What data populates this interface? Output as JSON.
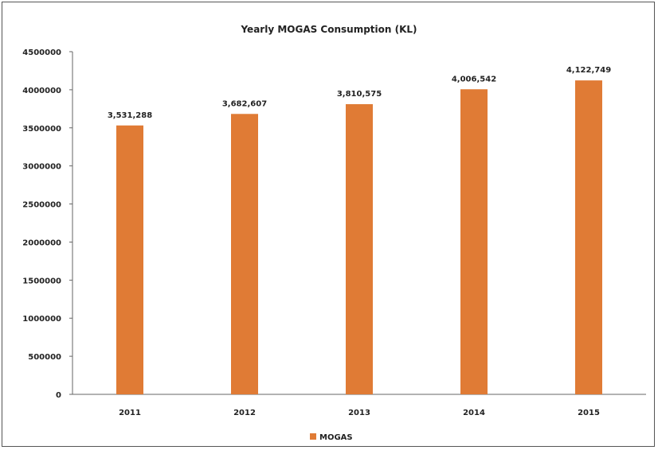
{
  "chart_data": {
    "type": "bar",
    "title": "Yearly MOGAS Consumption (KL)",
    "categories": [
      "2011",
      "2012",
      "2013",
      "2014",
      "2015"
    ],
    "series": [
      {
        "name": "MOGAS",
        "values": [
          3531288,
          3682607,
          3810575,
          4006542,
          4122749
        ],
        "labels": [
          "3,531,288",
          "3,682,607",
          "3,810,575",
          "4,006,542",
          "4,122,749"
        ],
        "color": "#E07B35"
      }
    ],
    "y_ticks": [
      "0",
      "500000",
      "1000000",
      "1500000",
      "2000000",
      "2500000",
      "3000000",
      "3500000",
      "4000000",
      "4500000"
    ],
    "ylim": [
      0,
      4500000
    ],
    "grid": false,
    "legend": "bottom-center"
  }
}
